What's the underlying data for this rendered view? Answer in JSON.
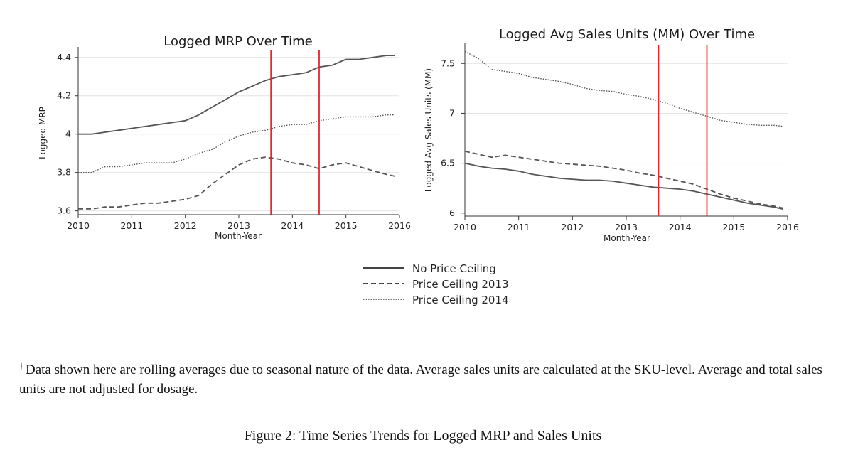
{
  "chart_data": [
    {
      "type": "line",
      "title": "Logged MRP Over Time",
      "xlabel": "Month-Year",
      "ylabel": "Logged MRP",
      "xlim": [
        2010,
        2016
      ],
      "ylim": [
        3.58,
        4.44
      ],
      "xticks": [
        2010,
        2011,
        2012,
        2013,
        2014,
        2015,
        2016
      ],
      "xtick_labels": [
        "2010",
        "2011",
        "2012",
        "2013",
        "2014",
        "2015",
        "2016"
      ],
      "yticks": [
        3.6,
        3.8,
        4.0,
        4.2,
        4.4
      ],
      "ytick_labels": [
        "3.6",
        "3.8",
        "4",
        "4.2",
        "4.4"
      ],
      "grid": "horizontal",
      "vlines": [
        2013.6,
        2014.5
      ],
      "series": [
        {
          "name": "No Price Ceiling",
          "style": "solid",
          "x": [
            2010.0,
            2010.25,
            2010.5,
            2010.75,
            2011.0,
            2011.25,
            2011.5,
            2011.75,
            2012.0,
            2012.25,
            2012.5,
            2012.75,
            2013.0,
            2013.25,
            2013.5,
            2013.75,
            2014.0,
            2014.25,
            2014.5,
            2014.75,
            2015.0,
            2015.25,
            2015.5,
            2015.75,
            2015.92
          ],
          "y": [
            4.0,
            4.0,
            4.01,
            4.02,
            4.03,
            4.04,
            4.05,
            4.06,
            4.07,
            4.1,
            4.14,
            4.18,
            4.22,
            4.25,
            4.28,
            4.3,
            4.31,
            4.32,
            4.35,
            4.36,
            4.39,
            4.39,
            4.4,
            4.41,
            4.41
          ]
        },
        {
          "name": "Price Ceiling 2013",
          "style": "dashed",
          "x": [
            2010.0,
            2010.25,
            2010.5,
            2010.75,
            2011.0,
            2011.25,
            2011.5,
            2011.75,
            2012.0,
            2012.25,
            2012.5,
            2012.75,
            2013.0,
            2013.25,
            2013.5,
            2013.75,
            2014.0,
            2014.25,
            2014.5,
            2014.75,
            2015.0,
            2015.25,
            2015.5,
            2015.75,
            2015.92
          ],
          "y": [
            3.61,
            3.61,
            3.62,
            3.62,
            3.63,
            3.64,
            3.64,
            3.65,
            3.66,
            3.68,
            3.74,
            3.79,
            3.84,
            3.87,
            3.88,
            3.87,
            3.85,
            3.84,
            3.82,
            3.84,
            3.85,
            3.83,
            3.81,
            3.79,
            3.78
          ]
        },
        {
          "name": "Price Ceiling 2014",
          "style": "dotted",
          "x": [
            2010.0,
            2010.25,
            2010.5,
            2010.75,
            2011.0,
            2011.25,
            2011.5,
            2011.75,
            2012.0,
            2012.25,
            2012.5,
            2012.75,
            2013.0,
            2013.25,
            2013.5,
            2013.75,
            2014.0,
            2014.25,
            2014.5,
            2014.75,
            2015.0,
            2015.25,
            2015.5,
            2015.75,
            2015.92
          ],
          "y": [
            3.8,
            3.8,
            3.83,
            3.83,
            3.84,
            3.85,
            3.85,
            3.85,
            3.87,
            3.9,
            3.92,
            3.96,
            3.99,
            4.01,
            4.02,
            4.04,
            4.05,
            4.05,
            4.07,
            4.08,
            4.09,
            4.09,
            4.09,
            4.1,
            4.1
          ]
        }
      ]
    },
    {
      "type": "line",
      "title": "Logged Avg Sales Units (MM) Over Time",
      "xlabel": "Month-Year",
      "ylabel": "Logged Avg Sales Units (MM)",
      "xlim": [
        2010,
        2016
      ],
      "ylim": [
        5.97,
        7.68
      ],
      "xticks": [
        2010,
        2011,
        2012,
        2013,
        2014,
        2015,
        2016
      ],
      "xtick_labels": [
        "2010",
        "2011",
        "2012",
        "2013",
        "2014",
        "2015",
        "2016"
      ],
      "yticks": [
        6.0,
        6.5,
        7.0,
        7.5
      ],
      "ytick_labels": [
        "6",
        "6.5",
        "7",
        "7.5"
      ],
      "grid": "horizontal",
      "vlines": [
        2013.6,
        2014.5
      ],
      "series": [
        {
          "name": "No Price Ceiling",
          "style": "solid",
          "x": [
            2010.0,
            2010.25,
            2010.5,
            2010.75,
            2011.0,
            2011.25,
            2011.5,
            2011.75,
            2012.0,
            2012.25,
            2012.5,
            2012.75,
            2013.0,
            2013.25,
            2013.5,
            2013.75,
            2014.0,
            2014.25,
            2014.5,
            2014.75,
            2015.0,
            2015.25,
            2015.5,
            2015.75,
            2015.92
          ],
          "y": [
            6.5,
            6.47,
            6.45,
            6.44,
            6.42,
            6.39,
            6.37,
            6.35,
            6.34,
            6.33,
            6.33,
            6.32,
            6.3,
            6.28,
            6.26,
            6.25,
            6.24,
            6.22,
            6.19,
            6.16,
            6.13,
            6.1,
            6.08,
            6.06,
            6.04
          ]
        },
        {
          "name": "Price Ceiling 2013",
          "style": "dashed",
          "x": [
            2010.0,
            2010.25,
            2010.5,
            2010.75,
            2011.0,
            2011.25,
            2011.5,
            2011.75,
            2012.0,
            2012.25,
            2012.5,
            2012.75,
            2013.0,
            2013.25,
            2013.5,
            2013.75,
            2014.0,
            2014.25,
            2014.5,
            2014.75,
            2015.0,
            2015.25,
            2015.5,
            2015.75,
            2015.92
          ],
          "y": [
            6.62,
            6.59,
            6.56,
            6.58,
            6.56,
            6.54,
            6.52,
            6.5,
            6.49,
            6.48,
            6.47,
            6.45,
            6.43,
            6.4,
            6.38,
            6.35,
            6.32,
            6.29,
            6.24,
            6.19,
            6.15,
            6.12,
            6.09,
            6.07,
            6.05
          ]
        },
        {
          "name": "Price Ceiling 2014",
          "style": "dotted",
          "x": [
            2010.0,
            2010.25,
            2010.5,
            2010.75,
            2011.0,
            2011.25,
            2011.5,
            2011.75,
            2012.0,
            2012.25,
            2012.5,
            2012.75,
            2013.0,
            2013.25,
            2013.5,
            2013.75,
            2014.0,
            2014.25,
            2014.5,
            2014.75,
            2015.0,
            2015.25,
            2015.5,
            2015.75,
            2015.92
          ],
          "y": [
            7.62,
            7.55,
            7.44,
            7.42,
            7.4,
            7.36,
            7.34,
            7.32,
            7.29,
            7.25,
            7.23,
            7.22,
            7.19,
            7.17,
            7.14,
            7.1,
            7.05,
            7.01,
            6.97,
            6.93,
            6.91,
            6.89,
            6.88,
            6.88,
            6.87
          ]
        }
      ]
    }
  ],
  "colors": {
    "series_line": "#555555",
    "vline": "#e8242a",
    "grid": "#e4e4e4",
    "axis": "#333333"
  },
  "legend": {
    "items": [
      "No Price Ceiling",
      "Price Ceiling 2013",
      "Price Ceiling 2014"
    ]
  },
  "footnote": {
    "marker": "†",
    "text": "Data shown here are rolling averages due to seasonal nature of the data. Average sales units are calculated at the SKU-level. Average and total sales units are not adjusted for dosage."
  },
  "caption": "Figure 2: Time Series Trends for Logged MRP and Sales Units"
}
